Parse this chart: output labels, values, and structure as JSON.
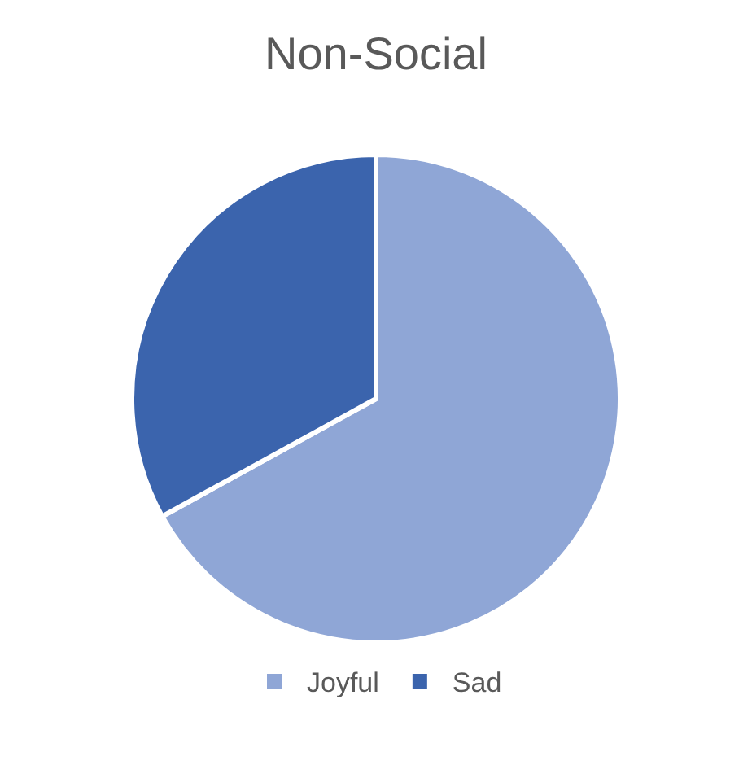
{
  "chart_data": {
    "type": "pie",
    "title": "Non-Social",
    "categories": [
      "Joyful",
      "Sad"
    ],
    "values": [
      67,
      33
    ],
    "colors": [
      "#8fa6d6",
      "#3b64ad"
    ],
    "legend": "bottom"
  }
}
